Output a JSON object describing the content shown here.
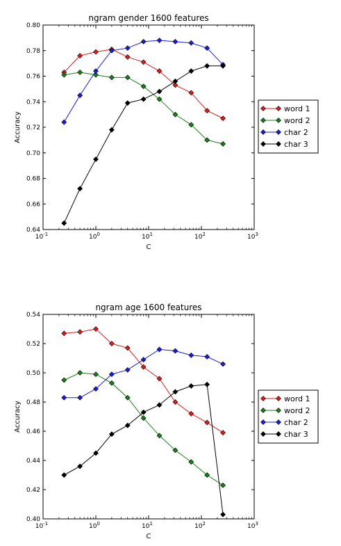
{
  "chart_data": [
    {
      "type": "line",
      "title": "ngram gender 1600 features",
      "xlabel": "C",
      "ylabel": "Accuracy",
      "xscale": "log",
      "xlim": [
        0.1,
        1000
      ],
      "ylim": [
        0.64,
        0.8
      ],
      "xticks": [
        0.1,
        1,
        10,
        100,
        1000
      ],
      "xtick_base": [
        "10",
        "10",
        "10",
        "10",
        "10"
      ],
      "xtick_exp": [
        "-1",
        "0",
        "1",
        "2",
        "3"
      ],
      "yticks": [
        0.64,
        0.66,
        0.68,
        0.7,
        0.72,
        0.74,
        0.76,
        0.78,
        0.8
      ],
      "ytick_labels": [
        "0.64",
        "0.66",
        "0.68",
        "0.70",
        "0.72",
        "0.74",
        "0.76",
        "0.78",
        "0.80"
      ],
      "legend_position": "outside-right",
      "x": [
        0.25,
        0.5,
        1,
        2,
        4,
        8,
        16,
        32,
        64,
        128,
        256
      ],
      "series": [
        {
          "name": "word 1",
          "color": "#dd1c1c",
          "values": [
            0.763,
            0.776,
            0.779,
            0.781,
            0.775,
            0.771,
            0.764,
            0.753,
            0.747,
            0.733,
            0.727
          ]
        },
        {
          "name": "word 2",
          "color": "#1a7f1a",
          "values": [
            0.761,
            0.763,
            0.761,
            0.759,
            0.759,
            0.752,
            0.742,
            0.73,
            0.722,
            0.71,
            0.707
          ]
        },
        {
          "name": "char 2",
          "color": "#1c1cdd",
          "values": [
            0.724,
            0.745,
            0.764,
            0.78,
            0.782,
            0.787,
            0.788,
            0.787,
            0.786,
            0.782,
            0.769
          ]
        },
        {
          "name": "char 3",
          "color": "#000000",
          "values": [
            0.645,
            0.672,
            0.695,
            0.718,
            0.739,
            0.742,
            0.748,
            0.756,
            0.764,
            0.768,
            0.768
          ]
        }
      ]
    },
    {
      "type": "line",
      "title": "ngram age 1600 features",
      "xlabel": "C",
      "ylabel": "Accuracy",
      "xscale": "log",
      "xlim": [
        0.1,
        1000
      ],
      "ylim": [
        0.4,
        0.54
      ],
      "xticks": [
        0.1,
        1,
        10,
        100,
        1000
      ],
      "xtick_base": [
        "10",
        "10",
        "10",
        "10",
        "10"
      ],
      "xtick_exp": [
        "-1",
        "0",
        "1",
        "2",
        "3"
      ],
      "yticks": [
        0.4,
        0.42,
        0.44,
        0.46,
        0.48,
        0.5,
        0.52,
        0.54
      ],
      "ytick_labels": [
        "0.40",
        "0.42",
        "0.44",
        "0.46",
        "0.48",
        "0.50",
        "0.52",
        "0.54"
      ],
      "legend_position": "outside-right",
      "x": [
        0.25,
        0.5,
        1,
        2,
        4,
        8,
        16,
        32,
        64,
        128,
        256
      ],
      "series": [
        {
          "name": "word 1",
          "color": "#dd1c1c",
          "values": [
            0.527,
            0.528,
            0.53,
            0.52,
            0.517,
            0.504,
            0.496,
            0.48,
            0.472,
            0.466,
            0.459
          ]
        },
        {
          "name": "word 2",
          "color": "#1a7f1a",
          "values": [
            0.495,
            0.5,
            0.499,
            0.493,
            0.483,
            0.469,
            0.457,
            0.447,
            0.439,
            0.43,
            0.423
          ]
        },
        {
          "name": "char 2",
          "color": "#1c1cdd",
          "values": [
            0.483,
            0.483,
            0.489,
            0.499,
            0.502,
            0.509,
            0.516,
            0.515,
            0.512,
            0.511,
            0.506
          ]
        },
        {
          "name": "char 3",
          "color": "#000000",
          "values": [
            0.43,
            0.436,
            0.445,
            0.458,
            0.464,
            0.473,
            0.478,
            0.487,
            0.491,
            0.492,
            0.403
          ]
        }
      ]
    }
  ]
}
